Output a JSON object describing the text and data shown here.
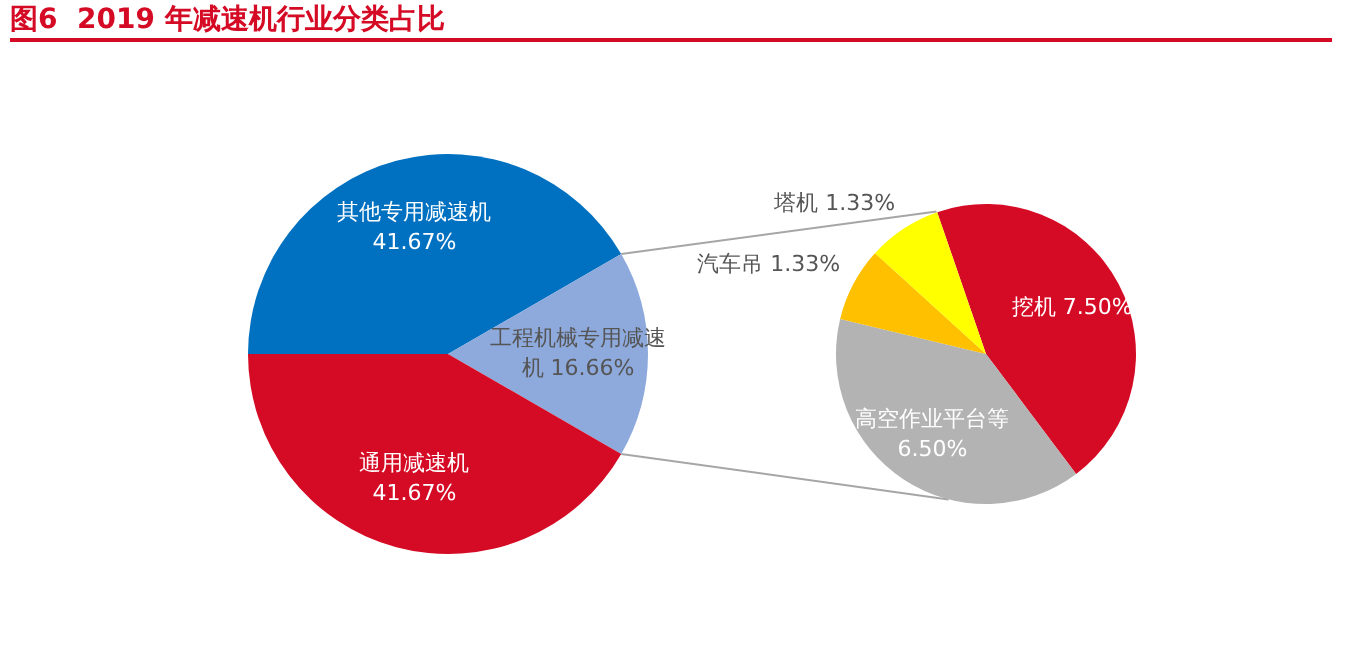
{
  "chart_data": [
    {
      "type": "pie",
      "title": "图6  2019 年减速机行业分类占比",
      "categories": [
        "其他专用减速机",
        "工程机械专用减速机",
        "通用减速机"
      ],
      "values": [
        41.67,
        16.66,
        41.67
      ],
      "colors": [
        "#0070c0",
        "#8eaadc",
        "#d50b25"
      ],
      "value_labels": [
        "41.67%",
        "16.66%",
        "41.67%"
      ]
    },
    {
      "type": "pie",
      "categories": [
        "挖机",
        "高空作业平台等",
        "汽车吊",
        "塔机"
      ],
      "values": [
        7.5,
        6.5,
        1.33,
        1.33
      ],
      "colors": [
        "#d50b25",
        "#b3b3b3",
        "#ffc000",
        "#ffff00"
      ],
      "value_labels": [
        "7.50%",
        "6.50%",
        "1.33%",
        "1.33%"
      ]
    }
  ]
}
